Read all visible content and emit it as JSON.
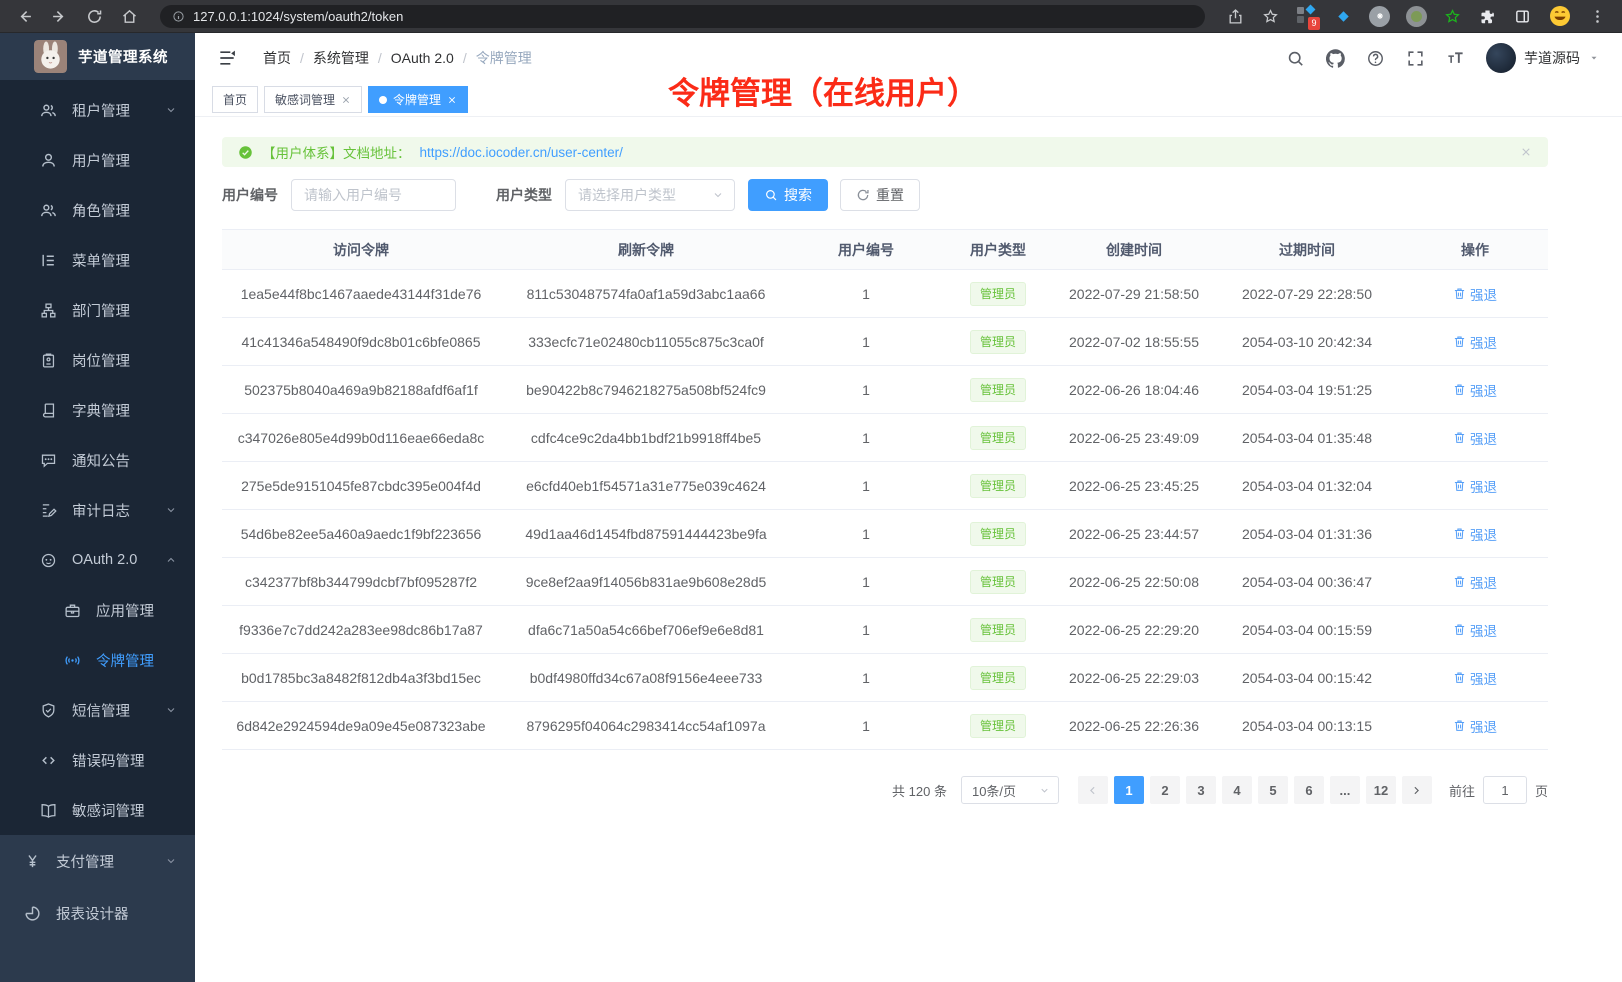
{
  "browser": {
    "url": "127.0.0.1:1024/system/oauth2/token",
    "extension_badge": "9"
  },
  "app": {
    "title": "芋道管理系统"
  },
  "sidebar": {
    "sub_items": [
      {
        "label": "租户管理",
        "icon": "users",
        "level": "l2",
        "chevron": "down"
      },
      {
        "label": "用户管理",
        "icon": "user",
        "level": "l2"
      },
      {
        "label": "角色管理",
        "icon": "users",
        "level": "l2"
      },
      {
        "label": "菜单管理",
        "icon": "tree",
        "level": "l2"
      },
      {
        "label": "部门管理",
        "icon": "org",
        "level": "l2"
      },
      {
        "label": "岗位管理",
        "icon": "badge",
        "level": "l2"
      },
      {
        "label": "字典管理",
        "icon": "book",
        "level": "l2"
      },
      {
        "label": "通知公告",
        "icon": "chat",
        "level": "l2"
      },
      {
        "label": "审计日志",
        "icon": "log",
        "level": "l2",
        "chevron": "down"
      },
      {
        "label": "OAuth 2.0",
        "icon": "oauth",
        "level": "l2",
        "chevron": "up"
      },
      {
        "label": "应用管理",
        "icon": "case",
        "level": "l3"
      },
      {
        "label": "令牌管理",
        "icon": "signal",
        "level": "l3",
        "active": true
      },
      {
        "label": "短信管理",
        "icon": "shield",
        "level": "l2",
        "chevron": "down"
      },
      {
        "label": "错误码管理",
        "icon": "code",
        "level": "l2"
      },
      {
        "label": "敏感词管理",
        "icon": "openbook",
        "level": "l2"
      }
    ],
    "top_items": [
      {
        "label": "支付管理",
        "icon": "yen",
        "level": "l1",
        "chevron": "down"
      },
      {
        "label": "报表设计器",
        "icon": "report",
        "level": "l1"
      }
    ]
  },
  "breadcrumb": {
    "separator": "/",
    "items": [
      {
        "label": "首页"
      },
      {
        "label": "系统管理"
      },
      {
        "label": "OAuth 2.0"
      },
      {
        "label": "令牌管理",
        "current": true
      }
    ]
  },
  "navbar": {
    "username": "芋道源码"
  },
  "tabs": {
    "items": [
      {
        "label": "首页"
      },
      {
        "label": "敏感词管理",
        "closable": true
      },
      {
        "label": "令牌管理",
        "closable": true,
        "active": true
      }
    ]
  },
  "annotation": {
    "text": "令牌管理（在线用户）"
  },
  "alert": {
    "text": "【用户体系】文档地址：",
    "link": "https://doc.iocoder.cn/user-center/"
  },
  "filters": {
    "user_id_label": "用户编号",
    "user_id_placeholder": "请输入用户编号",
    "user_type_label": "用户类型",
    "user_type_placeholder": "请选择用户类型",
    "search_label": "搜索",
    "reset_label": "重置"
  },
  "table": {
    "columns": [
      "访问令牌",
      "刷新令牌",
      "用户编号",
      "用户类型",
      "创建时间",
      "过期时间",
      "操作"
    ],
    "rows": [
      {
        "access": "1ea5e44f8bc1467aaede43144f31de76",
        "refresh": "811c530487574fa0af1a59d3abc1aa66",
        "user_id": "1",
        "user_type": "管理员",
        "created": "2022-07-29 21:58:50",
        "expires": "2022-07-29 22:28:50",
        "action": "强退"
      },
      {
        "access": "41c41346a548490f9dc8b01c6bfe0865",
        "refresh": "333ecfc71e02480cb11055c875c3ca0f",
        "user_id": "1",
        "user_type": "管理员",
        "created": "2022-07-02 18:55:55",
        "expires": "2054-03-10 20:42:34",
        "action": "强退"
      },
      {
        "access": "502375b8040a469a9b82188afdf6af1f",
        "refresh": "be90422b8c7946218275a508bf524fc9",
        "user_id": "1",
        "user_type": "管理员",
        "created": "2022-06-26 18:04:46",
        "expires": "2054-03-04 19:51:25",
        "action": "强退"
      },
      {
        "access": "c347026e805e4d99b0d116eae66eda8c",
        "refresh": "cdfc4ce9c2da4bb1bdf21b9918ff4be5",
        "user_id": "1",
        "user_type": "管理员",
        "created": "2022-06-25 23:49:09",
        "expires": "2054-03-04 01:35:48",
        "action": "强退"
      },
      {
        "access": "275e5de9151045fe87cbdc395e004f4d",
        "refresh": "e6cfd40eb1f54571a31e775e039c4624",
        "user_id": "1",
        "user_type": "管理员",
        "created": "2022-06-25 23:45:25",
        "expires": "2054-03-04 01:32:04",
        "action": "强退"
      },
      {
        "access": "54d6be82ee5a460a9aedc1f9bf223656",
        "refresh": "49d1aa46d1454fbd87591444423be9fa",
        "user_id": "1",
        "user_type": "管理员",
        "created": "2022-06-25 23:44:57",
        "expires": "2054-03-04 01:31:36",
        "action": "强退"
      },
      {
        "access": "c342377bf8b344799dcbf7bf095287f2",
        "refresh": "9ce8ef2aa9f14056b831ae9b608e28d5",
        "user_id": "1",
        "user_type": "管理员",
        "created": "2022-06-25 22:50:08",
        "expires": "2054-03-04 00:36:47",
        "action": "强退"
      },
      {
        "access": "f9336e7c7dd242a283ee98dc86b17a87",
        "refresh": "dfa6c71a50a54c66bef706ef9e6e8d81",
        "user_id": "1",
        "user_type": "管理员",
        "created": "2022-06-25 22:29:20",
        "expires": "2054-03-04 00:15:59",
        "action": "强退"
      },
      {
        "access": "b0d1785bc3a8482f812db4a3f3bd15ec",
        "refresh": "b0df4980ffd34c67a08f9156e4eee733",
        "user_id": "1",
        "user_type": "管理员",
        "created": "2022-06-25 22:29:03",
        "expires": "2054-03-04 00:15:42",
        "action": "强退"
      },
      {
        "access": "6d842e2924594de9a09e45e087323abe",
        "refresh": "8796295f04064c2983414cc54af1097a",
        "user_id": "1",
        "user_type": "管理员",
        "created": "2022-06-25 22:26:36",
        "expires": "2054-03-04 00:13:15",
        "action": "强退"
      }
    ]
  },
  "pagination": {
    "total": "共 120 条",
    "page_size": "10条/页",
    "pages": [
      {
        "label": "1",
        "active": true
      },
      {
        "label": "2"
      },
      {
        "label": "3"
      },
      {
        "label": "4"
      },
      {
        "label": "5"
      },
      {
        "label": "6"
      },
      {
        "label": "...",
        "ellipsis": true
      },
      {
        "label": "12"
      }
    ],
    "goto_label": "前往",
    "goto_value": "1",
    "page_label": "页"
  },
  "colors": {
    "accent": "#409eff",
    "success": "#67c23a",
    "annotation_red": "#fb2b17",
    "sidebar_dark": "#1b2635",
    "sidebar_base": "#2c3a4d"
  }
}
